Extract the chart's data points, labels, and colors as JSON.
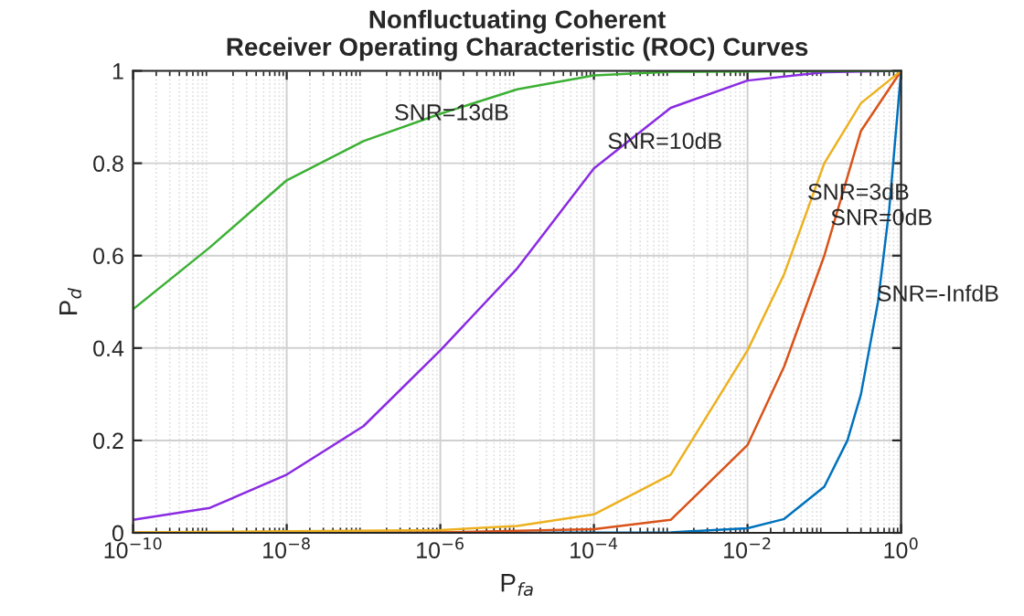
{
  "chart_data": {
    "type": "line",
    "title": "Nonfluctuating Coherent\nReceiver Operating Characteristic (ROC) Curves",
    "xlabel": "P$_{fa}$",
    "ylabel": "P$_{d}$",
    "log": "x",
    "xlim": [
      1e-10,
      1
    ],
    "ylim": [
      0,
      1
    ],
    "xticks": [
      {
        "value": 1e-10,
        "label": "10$^{−10}$"
      },
      {
        "value": 1e-08,
        "label": "10$^{−8}$"
      },
      {
        "value": 1e-06,
        "label": "10$^{−6}$"
      },
      {
        "value": 0.0001,
        "label": "10$^{−4}$"
      },
      {
        "value": 0.01,
        "label": "10$^{−2}$"
      },
      {
        "value": 1,
        "label": "10$^{0}$"
      }
    ],
    "yticks": [
      0,
      0.2,
      0.4,
      0.6,
      0.8,
      1
    ],
    "grid": true,
    "marker": "none",
    "line_style": "solid",
    "series": [
      {
        "color": "#0072bd",
        "x": [
          1e-10,
          1e-06,
          0.001,
          0.01,
          0.03,
          0.1,
          0.2,
          0.3,
          0.5,
          0.7,
          1
        ],
        "values": [
          0,
          0,
          0.001,
          0.01,
          0.03,
          0.1,
          0.2,
          0.3,
          0.5,
          0.7,
          1
        ]
      },
      {
        "color": "#d95319",
        "x": [
          1e-10,
          1e-06,
          0.0001,
          0.001,
          0.01,
          0.03,
          0.1,
          0.3,
          1
        ],
        "values": [
          0,
          0.001,
          0.008,
          0.028,
          0.19,
          0.36,
          0.6,
          0.87,
          1
        ]
      },
      {
        "color": "#edb120",
        "x": [
          1e-10,
          1e-06,
          1e-05,
          0.0001,
          0.001,
          0.01,
          0.03,
          0.1,
          0.3,
          1
        ],
        "values": [
          0.001,
          0.006,
          0.015,
          0.04,
          0.126,
          0.395,
          0.56,
          0.8,
          0.93,
          1
        ]
      },
      {
        "color": "#8a2be2",
        "x": [
          1e-10,
          1e-09,
          1e-08,
          1e-07,
          1e-06,
          1e-05,
          0.0001,
          0.001,
          0.01,
          0.1,
          1
        ],
        "values": [
          0.028,
          0.054,
          0.126,
          0.231,
          0.395,
          0.572,
          0.789,
          0.92,
          0.979,
          0.997,
          1
        ]
      },
      {
        "color": "#3cb034",
        "x": [
          1e-10,
          1e-09,
          1e-08,
          1e-07,
          1e-06,
          1e-05,
          0.0001,
          0.001,
          1
        ],
        "values": [
          0.484,
          0.618,
          0.763,
          0.848,
          0.907,
          0.96,
          0.99,
          0.998,
          1
        ]
      }
    ],
    "annotations": [
      {
        "text": "SNR=13dB",
        "x": 2.5e-07,
        "y": 0.872
      },
      {
        "text": "SNR=10dB",
        "x": 0.00015,
        "y": 0.81
      },
      {
        "text": "SNR=3dB",
        "x": 0.06,
        "y": 0.7
      },
      {
        "text": "SNR=0dB",
        "x": 0.12,
        "y": 0.645
      },
      {
        "text": "SNR=-InfdB",
        "x": 0.48,
        "y": 0.48
      }
    ]
  }
}
